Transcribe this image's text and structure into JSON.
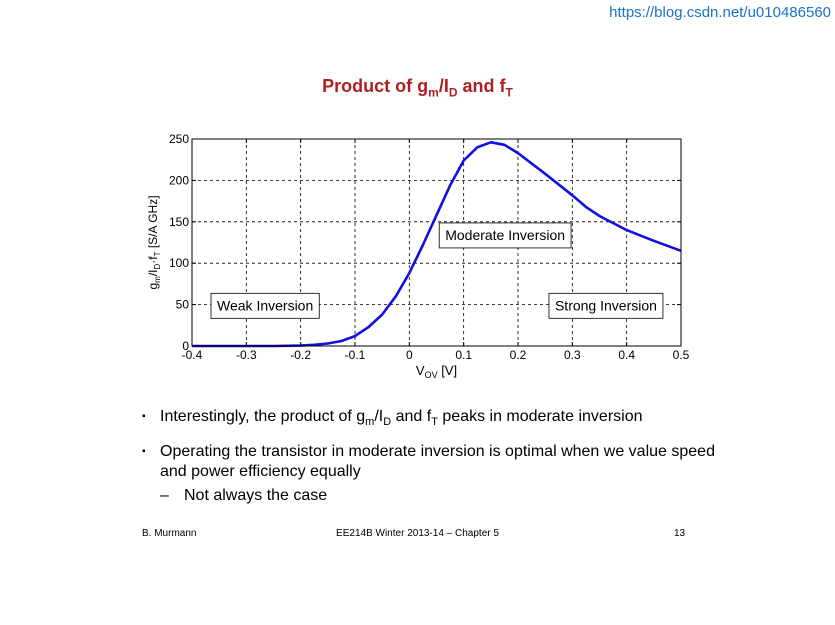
{
  "watermark": "https://blog.csdn.net/u010486560",
  "title": {
    "prefix": "Product of g",
    "sub1": "m",
    "mid": "/I",
    "sub2": "D",
    "join": " and f",
    "sub3": "T"
  },
  "chart_data": {
    "type": "line",
    "title": "Product of gm/ID and fT",
    "xlabel_main": "V",
    "xlabel_sub": "OV",
    "xlabel_unit": " [V]",
    "ylabel": "gm/ID·fT [S/A GHz]",
    "ylabel_parts": [
      "g",
      "m",
      "/I",
      "D",
      "·f",
      "T",
      " [S/A GHz]"
    ],
    "xlim": [
      -0.4,
      0.5
    ],
    "ylim": [
      0,
      250
    ],
    "xticks": [
      -0.4,
      -0.3,
      -0.2,
      -0.1,
      0,
      0.1,
      0.2,
      0.3,
      0.4,
      0.5
    ],
    "xtick_labels": [
      "-0.4",
      "-0.3",
      "-0.2",
      "-0.1",
      "0",
      "0.1",
      "0.2",
      "0.3",
      "0.4",
      "0.5"
    ],
    "yticks": [
      0,
      50,
      100,
      150,
      200,
      250
    ],
    "ytick_labels": [
      "0",
      "50",
      "100",
      "150",
      "200",
      "250"
    ],
    "grid": true,
    "series": [
      {
        "name": "gm/ID*fT",
        "color": "#1010e0",
        "x": [
          -0.4,
          -0.35,
          -0.3,
          -0.25,
          -0.2,
          -0.175,
          -0.15,
          -0.125,
          -0.1,
          -0.075,
          -0.05,
          -0.025,
          0,
          0.025,
          0.05,
          0.075,
          0.1,
          0.125,
          0.15,
          0.175,
          0.2,
          0.25,
          0.3,
          0.325,
          0.35,
          0.4,
          0.45,
          0.5
        ],
        "y": [
          0,
          0,
          0,
          0,
          0.5,
          1.5,
          3,
          6,
          12,
          23,
          38,
          60,
          88,
          122,
          158,
          194,
          224,
          240,
          246,
          243,
          233,
          208,
          182,
          168,
          157,
          140,
          127,
          115
        ]
      }
    ],
    "annotations": [
      {
        "text": "Weak Inversion",
        "x": -0.365,
        "y": 60
      },
      {
        "text": "Moderate Inversion",
        "x": 0.055,
        "y": 145
      },
      {
        "text": "Strong Inversion",
        "x": 0.257,
        "y": 60
      }
    ]
  },
  "bullets": {
    "b1": {
      "pre": "Interestingly, the product of g",
      "s1": "m",
      "mid": "/I",
      "s2": "D",
      "join": " and f",
      "s3": "T",
      "post": " peaks in moderate inversion"
    },
    "b2": "Operating the transistor in moderate inversion is optimal when we value speed and power efficiency equally",
    "b3": "Not always the case",
    "marker": "▪",
    "dash": "–"
  },
  "footer": {
    "author": "B. Murmann",
    "course": "EE214B Winter 2013-14 – Chapter 5",
    "page": "13"
  }
}
